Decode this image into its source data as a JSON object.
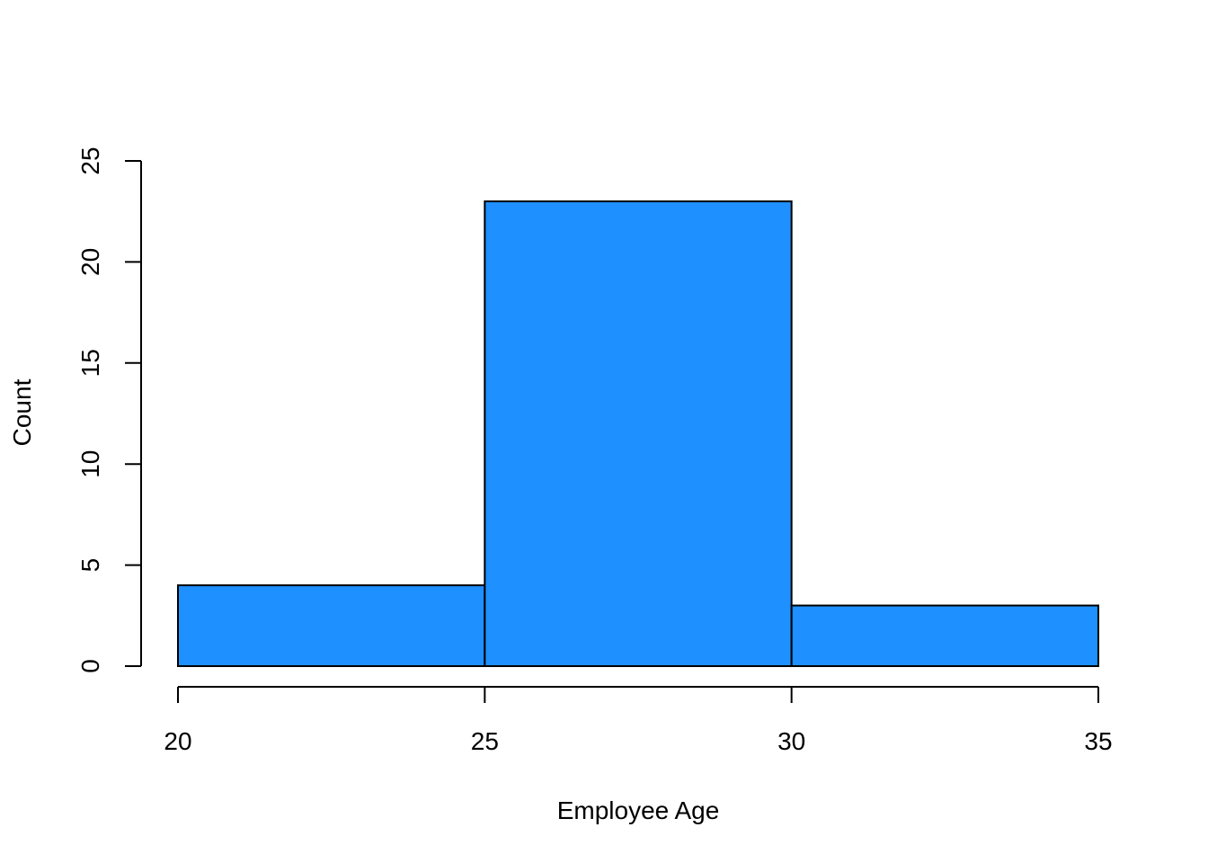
{
  "chart_data": {
    "type": "bar",
    "bins": [
      {
        "start": 20,
        "end": 25,
        "count": 4
      },
      {
        "start": 25,
        "end": 30,
        "count": 23
      },
      {
        "start": 30,
        "end": 35,
        "count": 3
      }
    ],
    "title": "",
    "xlabel": "Employee Age",
    "ylabel": "Count",
    "xlim": [
      20,
      35
    ],
    "ylim": [
      0,
      25
    ],
    "x_ticks": [
      20,
      25,
      30,
      35
    ],
    "y_ticks": [
      0,
      5,
      10,
      15,
      20,
      25
    ],
    "x_tick_labels": [
      "20",
      "25",
      "30",
      "35"
    ],
    "y_tick_labels": [
      "0",
      "5",
      "10",
      "15",
      "20",
      "25"
    ],
    "grid": false,
    "legend": "none",
    "bar_color": "#1E90FF",
    "edge_color": "#000000"
  }
}
